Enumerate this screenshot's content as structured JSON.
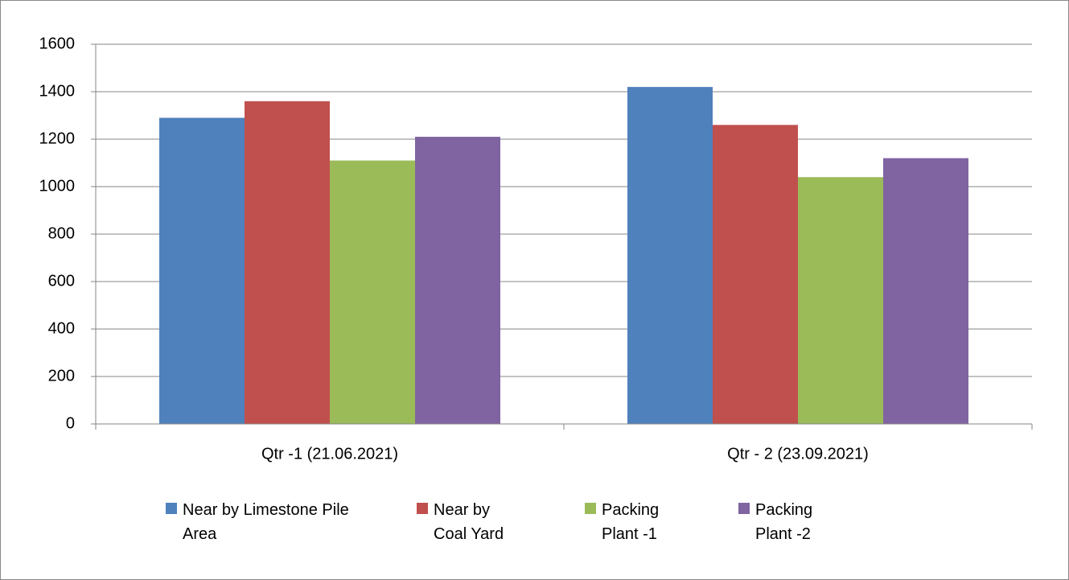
{
  "chart_data": {
    "type": "bar",
    "categories": [
      "Qtr -1 (21.06.2021)",
      "Qtr - 2 (23.09.2021)"
    ],
    "series": [
      {
        "name": "Near by Limestone Pile Area",
        "color": "#4f81bd",
        "values": [
          1290,
          1420
        ]
      },
      {
        "name": "Near by Coal Yard",
        "color": "#c0504d",
        "values": [
          1360,
          1260
        ]
      },
      {
        "name": "Packing Plant -1",
        "color": "#9bbb59",
        "values": [
          1110,
          1040
        ]
      },
      {
        "name": "Packing Plant -2",
        "color": "#8064a2",
        "values": [
          1210,
          1120
        ]
      }
    ],
    "ylim": [
      0,
      1600
    ],
    "yticks": [
      0,
      200,
      400,
      600,
      800,
      1000,
      1200,
      1400,
      1600
    ],
    "grid": true,
    "legend": "bottom"
  }
}
